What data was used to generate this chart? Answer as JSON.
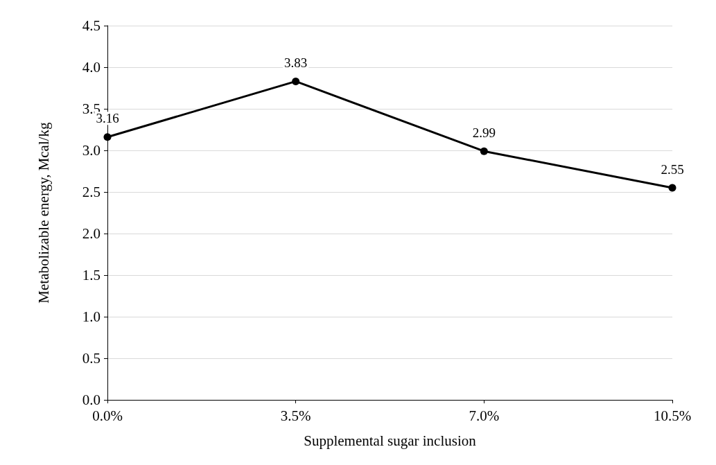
{
  "chart_data": {
    "type": "line",
    "xlabel": "Supplemental sugar inclusion",
    "ylabel": "Metabolizable energy, Mcal/kg",
    "categories": [
      "0.0%",
      "3.5%",
      "7.0%",
      "10.5%"
    ],
    "series": [
      {
        "color": "#000000",
        "values": [
          3.16,
          3.83,
          2.99,
          2.55
        ]
      }
    ],
    "ylim": [
      0,
      4.5
    ],
    "yticks": [
      {
        "value": 0,
        "label": "0.0"
      },
      0.5,
      {
        "value": 1,
        "label": "1.0"
      },
      1.5,
      {
        "value": 2,
        "label": "2.0"
      },
      2.5,
      {
        "value": 3,
        "label": "3.0"
      },
      3.5,
      {
        "value": 4,
        "label": "4.0"
      },
      4.5
    ],
    "grid": "y",
    "marker": "circle",
    "line_style": "solid",
    "data_labels": true
  }
}
